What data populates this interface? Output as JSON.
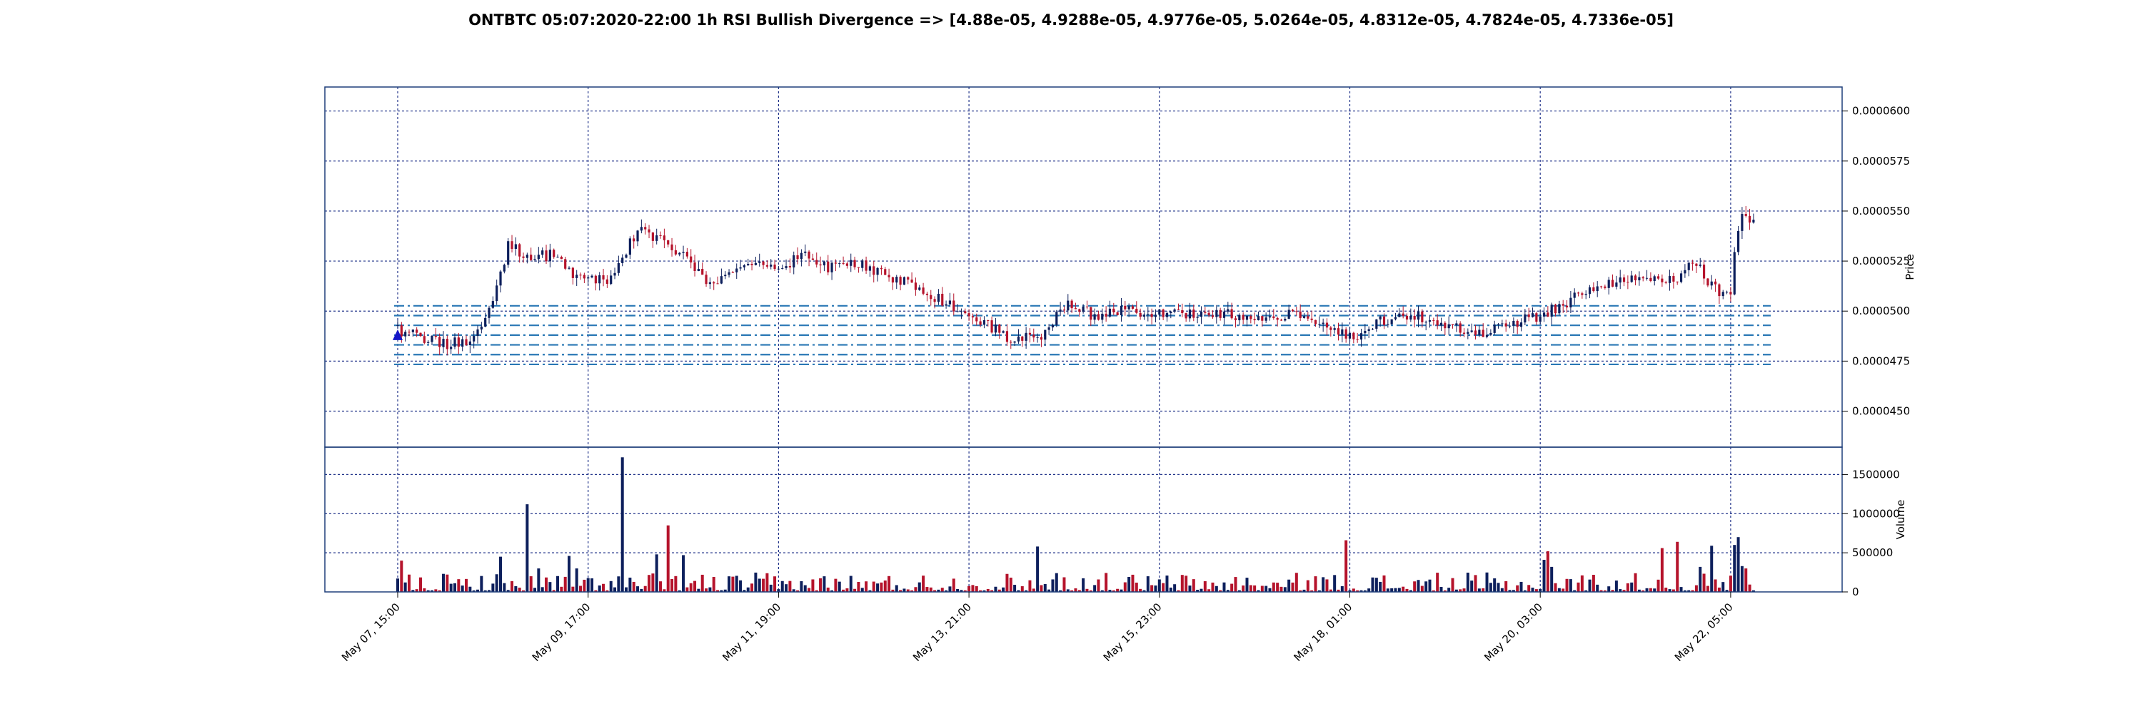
{
  "colors": {
    "up": "#0d1f5c",
    "down": "#b5132b",
    "frame": "#1f3f7a",
    "grid": "#22348a",
    "level_line": "#2a78b5",
    "marker": "#1515c8"
  },
  "chart_data": {
    "type": "candlestick",
    "title": "ONTBTC 05:07:2020-22:00 1h RSI Bullish Divergence => [4.88e-05, 4.9288e-05, 4.9776e-05, 5.0264e-05, 4.8312e-05, 4.7824e-05, 4.7336e-05]",
    "price_axis": {
      "label": "Price",
      "ylim": [
        4.32e-05,
        6.12e-05
      ],
      "ticks": [
        6e-05,
        5.75e-05,
        5.5e-05,
        5.25e-05,
        5e-05,
        4.75e-05,
        4.5e-05
      ],
      "tick_labels": [
        "0.0000600",
        "0.0000575",
        "0.0000550",
        "0.0000525",
        "0.0000500",
        "0.0000475",
        "0.0000450"
      ]
    },
    "volume_axis": {
      "label": "Volume",
      "ylim": [
        0,
        1850000
      ],
      "ticks": [
        0,
        500000,
        1000000,
        1500000
      ],
      "tick_labels": [
        "0",
        "500000",
        "1000000",
        "1500000"
      ]
    },
    "x_axis": {
      "start": "May 07, 15:00",
      "end": "May 22, 11:00",
      "tick_labels": [
        "May 07, 15:00",
        "May 09, 17:00",
        "May 11, 19:00",
        "May 13, 21:00",
        "May 15, 23:00",
        "May 18, 01:00",
        "May 20, 03:00",
        "May 22, 05:00"
      ]
    },
    "grid": true,
    "levels": [
      4.88e-05,
      4.9288e-05,
      4.9776e-05,
      5.0264e-05,
      4.8312e-05,
      4.7824e-05,
      4.7336e-05
    ],
    "signal_marker": {
      "time": "May 07, 15:00",
      "price": 4.88e-05,
      "shape": "triangle-up"
    },
    "price_path": [
      [
        "May 07, 15:00",
        4.9e-05
      ],
      [
        "May 08, 04:00",
        4.84e-05
      ],
      [
        "May 08, 11:00",
        4.85e-05
      ],
      [
        "May 08, 16:00",
        5.04e-05
      ],
      [
        "May 08, 20:00",
        5.33e-05
      ],
      [
        "May 09, 02:00",
        5.27e-05
      ],
      [
        "May 09, 08:00",
        5.28e-05
      ],
      [
        "May 09, 13:00",
        5.17e-05
      ],
      [
        "May 09, 22:00",
        5.15e-05
      ],
      [
        "May 10, 06:00",
        5.4e-05
      ],
      [
        "May 10, 12:00",
        5.36e-05
      ],
      [
        "May 10, 18:00",
        5.27e-05
      ],
      [
        "May 11, 02:00",
        5.12e-05
      ],
      [
        "May 11, 10:00",
        5.25e-05
      ],
      [
        "May 11, 19:00",
        5.23e-05
      ],
      [
        "May 12, 02:00",
        5.27e-05
      ],
      [
        "May 12, 08:00",
        5.21e-05
      ],
      [
        "May 12, 14:00",
        5.25e-05
      ],
      [
        "May 12, 22:00",
        5.19e-05
      ],
      [
        "May 13, 06:00",
        5.14e-05
      ],
      [
        "May 13, 16:00",
        5.03e-05
      ],
      [
        "May 13, 23:00",
        4.96e-05
      ],
      [
        "May 14, 07:00",
        4.87e-05
      ],
      [
        "May 14, 16:00",
        4.88e-05
      ],
      [
        "May 14, 22:00",
        5.03e-05
      ],
      [
        "May 15, 06:00",
        4.98e-05
      ],
      [
        "May 15, 14:00",
        5e-05
      ],
      [
        "May 15, 23:00",
        4.98e-05
      ],
      [
        "May 16, 12:00",
        5e-05
      ],
      [
        "May 17, 00:00",
        4.97e-05
      ],
      [
        "May 17, 12:00",
        4.99e-05
      ],
      [
        "May 17, 22:00",
        4.9e-05
      ],
      [
        "May 18, 02:00",
        4.86e-05
      ],
      [
        "May 18, 09:00",
        4.95e-05
      ],
      [
        "May 18, 20:00",
        4.97e-05
      ],
      [
        "May 19, 06:00",
        4.92e-05
      ],
      [
        "May 19, 12:00",
        4.9e-05
      ],
      [
        "May 19, 20:00",
        4.94e-05
      ],
      [
        "May 20, 03:00",
        4.98e-05
      ],
      [
        "May 20, 09:00",
        5.03e-05
      ],
      [
        "May 20, 14:00",
        5.1e-05
      ],
      [
        "May 20, 22:00",
        5.14e-05
      ],
      [
        "May 21, 06:00",
        5.19e-05
      ],
      [
        "May 21, 14:00",
        5.14e-05
      ],
      [
        "May 21, 20:00",
        5.25e-05
      ],
      [
        "May 22, 00:00",
        5.12e-05
      ],
      [
        "May 22, 04:00",
        5.08e-05
      ],
      [
        "May 22, 05:00",
        5.1e-05
      ],
      [
        "May 22, 06:00",
        5.32e-05
      ],
      [
        "May 22, 08:00",
        5.5e-05
      ],
      [
        "May 22, 10:00",
        5.43e-05
      ],
      [
        "May 22, 11:00",
        5.48e-05
      ]
    ],
    "volume_events": [
      [
        "May 07, 16:00",
        400000
      ],
      [
        "May 08, 18:00",
        450000
      ],
      [
        "May 09, 01:00",
        1120000
      ],
      [
        "May 09, 04:00",
        300000
      ],
      [
        "May 09, 12:00",
        460000
      ],
      [
        "May 09, 14:00",
        300000
      ],
      [
        "May 10, 02:00",
        1720000
      ],
      [
        "May 10, 11:00",
        480000
      ],
      [
        "May 10, 14:00",
        850000
      ],
      [
        "May 10, 18:00",
        470000
      ],
      [
        "May 12, 04:00",
        160000
      ],
      [
        "May 14, 15:00",
        580000
      ],
      [
        "May 14, 20:00",
        240000
      ],
      [
        "May 18, 00:00",
        660000
      ],
      [
        "May 20, 04:00",
        410000
      ],
      [
        "May 20, 05:00",
        520000
      ],
      [
        "May 20, 06:00",
        320000
      ],
      [
        "May 21, 11:00",
        560000
      ],
      [
        "May 21, 15:00",
        640000
      ],
      [
        "May 21, 21:00",
        320000
      ],
      [
        "May 22, 00:00",
        590000
      ],
      [
        "May 22, 06:00",
        600000
      ],
      [
        "May 22, 07:00",
        700000
      ],
      [
        "May 22, 08:00",
        330000
      ],
      [
        "May 22, 09:00",
        300000
      ]
    ]
  }
}
